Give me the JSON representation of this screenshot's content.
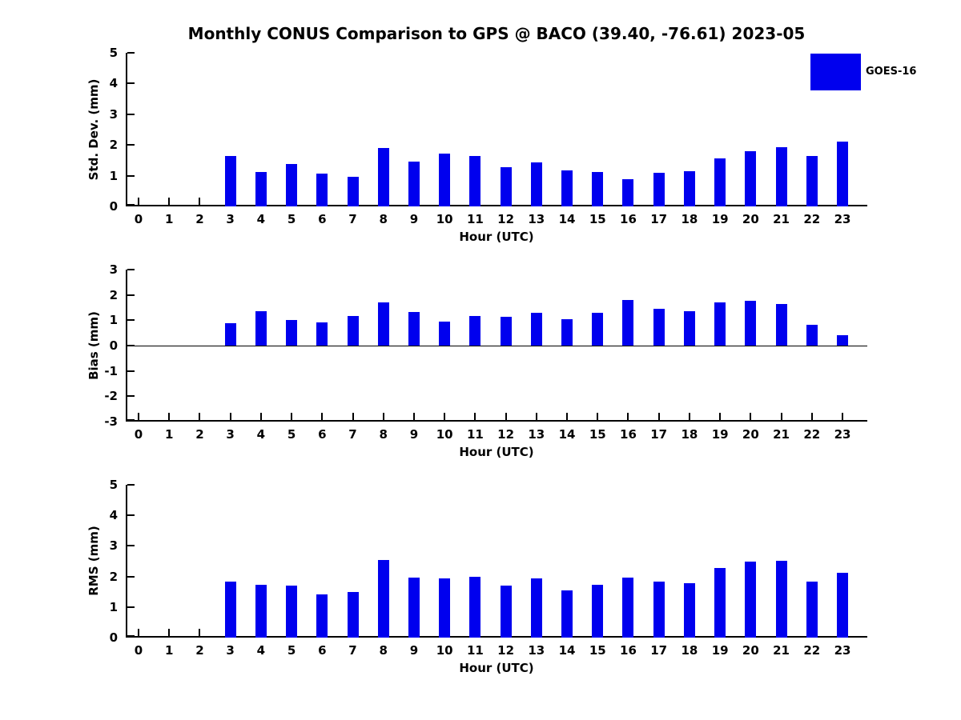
{
  "title": "Monthly CONUS Comparison to GPS @ BACO (39.40, -76.61) 2023-05",
  "legend": {
    "label": "GOES-16",
    "color": "#0000EE"
  },
  "bar_color": "#0000EE",
  "chart_data": [
    {
      "type": "bar",
      "panel": "std-dev",
      "series": "GOES-16",
      "ylabel": "Std. Dev. (mm)",
      "xlabel": "Hour (UTC)",
      "ylim": [
        0,
        5
      ],
      "yticks": [
        0,
        1,
        2,
        3,
        4,
        5
      ],
      "x": [
        0,
        1,
        2,
        3,
        4,
        5,
        6,
        7,
        8,
        9,
        10,
        11,
        12,
        13,
        14,
        15,
        16,
        17,
        18,
        19,
        20,
        21,
        22,
        23
      ],
      "values": [
        null,
        null,
        null,
        1.65,
        1.12,
        1.37,
        1.08,
        0.97,
        1.9,
        1.47,
        1.72,
        1.64,
        1.28,
        1.42,
        1.18,
        1.13,
        0.88,
        1.1,
        1.15,
        1.57,
        1.8,
        1.93,
        1.65,
        2.1
      ]
    },
    {
      "type": "bar",
      "panel": "bias",
      "series": "GOES-16",
      "ylabel": "Bias (mm)",
      "xlabel": "Hour (UTC)",
      "ylim": [
        -3,
        3
      ],
      "yticks": [
        -3,
        -2,
        -1,
        0,
        1,
        2,
        3
      ],
      "zero_line": true,
      "x": [
        0,
        1,
        2,
        3,
        4,
        5,
        6,
        7,
        8,
        9,
        10,
        11,
        12,
        13,
        14,
        15,
        16,
        17,
        18,
        19,
        20,
        21,
        22,
        23
      ],
      "values": [
        null,
        null,
        null,
        0.87,
        1.35,
        1.02,
        0.92,
        1.17,
        1.7,
        1.32,
        0.96,
        1.17,
        1.14,
        1.3,
        1.05,
        1.31,
        1.8,
        1.46,
        1.35,
        1.7,
        1.77,
        1.64,
        0.83,
        0.42
      ]
    },
    {
      "type": "bar",
      "panel": "rms",
      "series": "GOES-16",
      "ylabel": "RMS (mm)",
      "xlabel": "Hour (UTC)",
      "ylim": [
        0,
        5
      ],
      "yticks": [
        0,
        1,
        2,
        3,
        4,
        5
      ],
      "x": [
        0,
        1,
        2,
        3,
        4,
        5,
        6,
        7,
        8,
        9,
        10,
        11,
        12,
        13,
        14,
        15,
        16,
        17,
        18,
        19,
        20,
        21,
        22,
        23
      ],
      "values": [
        null,
        null,
        null,
        1.84,
        1.73,
        1.7,
        1.42,
        1.5,
        2.54,
        1.97,
        1.94,
        2.0,
        1.71,
        1.93,
        1.55,
        1.73,
        1.97,
        1.82,
        1.77,
        2.28,
        2.49,
        2.52,
        1.83,
        2.12
      ]
    }
  ]
}
